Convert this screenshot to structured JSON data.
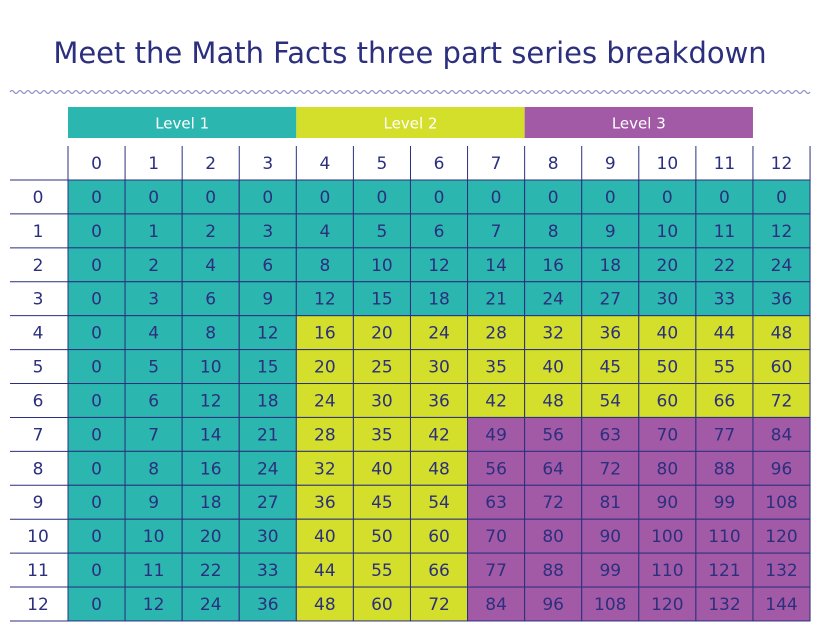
{
  "title": "Meet the Math Facts three part series breakdown",
  "levels": [
    {
      "label": "Level 1",
      "color": "#2cb6b0"
    },
    {
      "label": "Level 2",
      "color": "#d3df2a"
    },
    {
      "label": "Level 3",
      "color": "#a35aa6"
    }
  ],
  "table": {
    "column_headers": [
      0,
      1,
      2,
      3,
      4,
      5,
      6,
      7,
      8,
      9,
      10,
      11,
      12
    ],
    "row_headers": [
      0,
      1,
      2,
      3,
      4,
      5,
      6,
      7,
      8,
      9,
      10,
      11,
      12
    ],
    "rows": [
      [
        0,
        0,
        0,
        0,
        0,
        0,
        0,
        0,
        0,
        0,
        0,
        0,
        0
      ],
      [
        0,
        1,
        2,
        3,
        4,
        5,
        6,
        7,
        8,
        9,
        10,
        11,
        12
      ],
      [
        0,
        2,
        4,
        6,
        8,
        10,
        12,
        14,
        16,
        18,
        20,
        22,
        24
      ],
      [
        0,
        3,
        6,
        9,
        12,
        15,
        18,
        21,
        24,
        27,
        30,
        33,
        36
      ],
      [
        0,
        4,
        8,
        12,
        16,
        20,
        24,
        28,
        32,
        36,
        40,
        44,
        48
      ],
      [
        0,
        5,
        10,
        15,
        20,
        25,
        30,
        35,
        40,
        45,
        50,
        55,
        60
      ],
      [
        0,
        6,
        12,
        18,
        24,
        30,
        36,
        42,
        48,
        54,
        60,
        66,
        72
      ],
      [
        0,
        7,
        14,
        21,
        28,
        35,
        42,
        49,
        56,
        63,
        70,
        77,
        84
      ],
      [
        0,
        8,
        16,
        24,
        32,
        40,
        48,
        56,
        64,
        72,
        80,
        88,
        96
      ],
      [
        0,
        9,
        18,
        27,
        36,
        45,
        54,
        63,
        72,
        81,
        90,
        99,
        108
      ],
      [
        0,
        10,
        20,
        30,
        40,
        50,
        60,
        70,
        80,
        90,
        100,
        110,
        120
      ],
      [
        0,
        11,
        22,
        33,
        44,
        55,
        66,
        77,
        88,
        99,
        110,
        121,
        132
      ],
      [
        0,
        12,
        24,
        36,
        48,
        60,
        72,
        84,
        96,
        108,
        120,
        132,
        144
      ]
    ]
  }
}
